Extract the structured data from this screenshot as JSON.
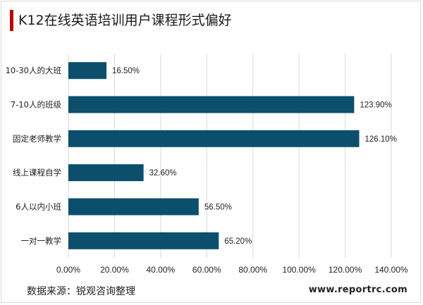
{
  "page": {
    "title": "K12在线英语培训用户课程形式偏好",
    "source": "数据来源：锐观咨询整理",
    "website": "www.reportrc.com"
  },
  "chart_data": {
    "type": "bar",
    "orientation": "horizontal",
    "title": "K12在线英语培训用户课程形式偏好",
    "categories": [
      "10-30人的大班",
      "7-10人的班级",
      "固定老师教学",
      "线上课程自学",
      "6人以内小班",
      "一对一教学"
    ],
    "values": [
      16.5,
      123.9,
      126.1,
      32.6,
      56.5,
      65.2
    ],
    "value_labels": [
      "16.50%",
      "123.90%",
      "126.10%",
      "32.60%",
      "56.50%",
      "65.20%"
    ],
    "xlim": [
      0,
      140
    ],
    "x_ticks": [
      0,
      20,
      40,
      60,
      80,
      100,
      120,
      140
    ],
    "x_tick_labels": [
      "0.00%",
      "20.00%",
      "40.00%",
      "60.00%",
      "80.00%",
      "100.00%",
      "120.00%",
      "140.00%"
    ],
    "bar_color": "#0b4f6c",
    "grid": true
  }
}
